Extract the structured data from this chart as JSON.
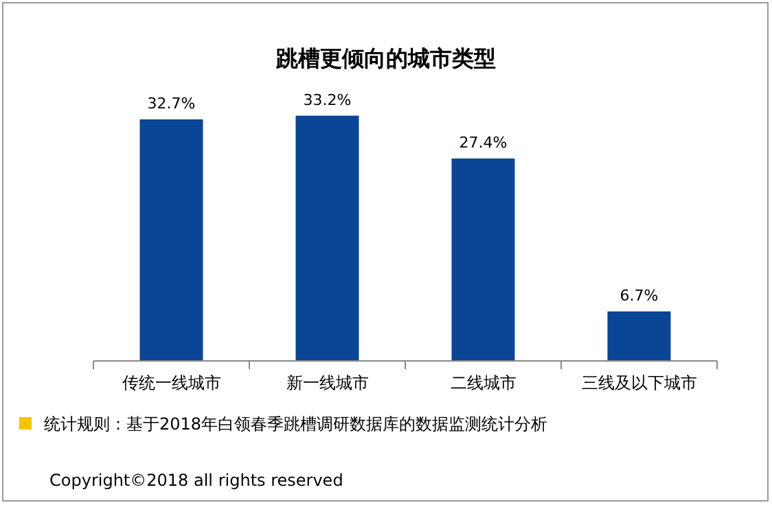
{
  "chart_data": {
    "type": "bar",
    "title": "跳槽更倾向的城市类型",
    "categories": [
      "传统一线城市",
      "新一线城市",
      "二线城市",
      "三线及以下城市"
    ],
    "values": [
      32.7,
      33.2,
      27.4,
      6.7
    ],
    "value_labels": [
      "32.7%",
      "33.2%",
      "27.4%",
      "6.7%"
    ],
    "color": "#0b4595",
    "annotations": [
      "统计规则：基于2018年白领春季跳槽调研数据库的数据监测统计分析",
      "Copyright©2018 all rights reserved"
    ]
  }
}
